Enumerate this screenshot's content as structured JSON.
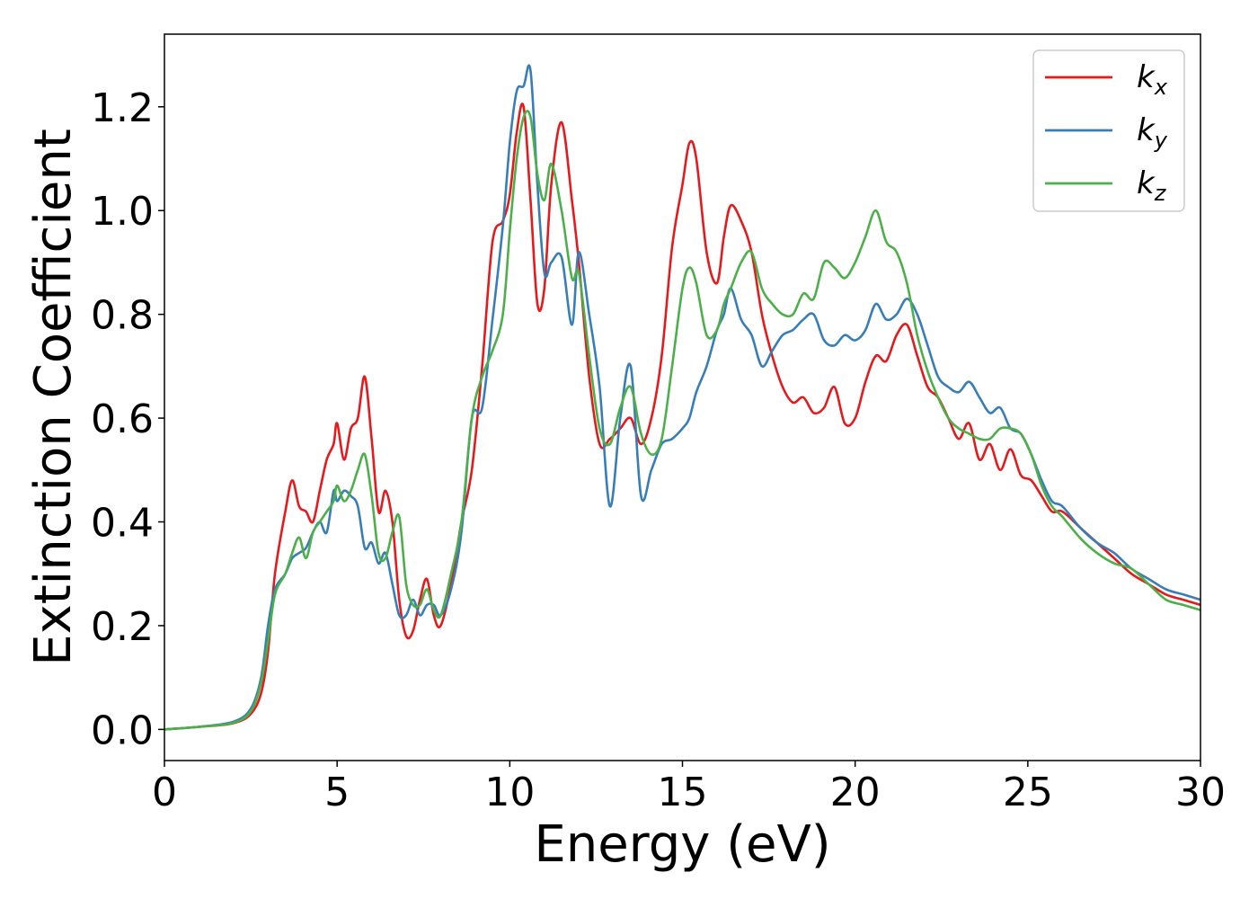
{
  "chart_data": {
    "type": "line",
    "title": "",
    "xlabel": "Energy (eV)",
    "ylabel": "Extinction Coefficient",
    "xlim": [
      0,
      30
    ],
    "ylim": [
      -0.06,
      1.34
    ],
    "xticks": [
      0,
      5,
      10,
      15,
      20,
      25,
      30
    ],
    "yticks": [
      "0.0",
      "0.2",
      "0.4",
      "0.6",
      "0.8",
      "1.0",
      "1.2"
    ],
    "ytick_values": [
      0.0,
      0.2,
      0.4,
      0.6,
      0.8,
      1.0,
      1.2
    ],
    "grid": false,
    "legend_position": "top-right",
    "series": [
      {
        "name": "k_x",
        "label_main": "k",
        "label_sub": "x",
        "color": "#e41a1c",
        "x": [
          0,
          1,
          2,
          2.5,
          2.8,
          3.0,
          3.2,
          3.5,
          3.7,
          3.9,
          4.1,
          4.3,
          4.5,
          4.7,
          4.9,
          5.0,
          5.2,
          5.4,
          5.6,
          5.8,
          6.0,
          6.2,
          6.4,
          6.6,
          6.8,
          7.0,
          7.2,
          7.4,
          7.6,
          7.8,
          8.0,
          8.3,
          8.6,
          8.9,
          9.2,
          9.5,
          9.8,
          10.0,
          10.2,
          10.4,
          10.6,
          10.8,
          11.0,
          11.2,
          11.5,
          11.8,
          12.0,
          12.3,
          12.6,
          12.9,
          13.2,
          13.5,
          13.8,
          14.1,
          14.4,
          14.7,
          15.0,
          15.2,
          15.4,
          15.7,
          16.0,
          16.2,
          16.4,
          16.7,
          17.0,
          17.3,
          17.6,
          17.9,
          18.2,
          18.5,
          18.8,
          19.1,
          19.4,
          19.7,
          20.0,
          20.3,
          20.6,
          20.9,
          21.2,
          21.5,
          21.8,
          22.1,
          22.4,
          22.7,
          23.0,
          23.3,
          23.6,
          23.9,
          24.2,
          24.5,
          24.8,
          25.1,
          25.4,
          25.7,
          26.0,
          26.5,
          27.0,
          27.5,
          28.0,
          28.5,
          29.0,
          29.5,
          30.0
        ],
        "y": [
          0.0,
          0.005,
          0.012,
          0.03,
          0.07,
          0.15,
          0.3,
          0.42,
          0.48,
          0.43,
          0.42,
          0.4,
          0.46,
          0.52,
          0.55,
          0.59,
          0.52,
          0.58,
          0.6,
          0.68,
          0.56,
          0.42,
          0.46,
          0.4,
          0.25,
          0.18,
          0.19,
          0.25,
          0.29,
          0.22,
          0.2,
          0.28,
          0.4,
          0.5,
          0.7,
          0.94,
          0.98,
          1.03,
          1.15,
          1.2,
          1.02,
          0.82,
          0.85,
          1.05,
          1.17,
          1.02,
          0.9,
          0.68,
          0.55,
          0.56,
          0.58,
          0.6,
          0.55,
          0.6,
          0.72,
          0.93,
          1.05,
          1.13,
          1.1,
          0.92,
          0.86,
          0.95,
          1.01,
          0.98,
          0.92,
          0.8,
          0.72,
          0.66,
          0.63,
          0.64,
          0.61,
          0.62,
          0.66,
          0.59,
          0.6,
          0.67,
          0.72,
          0.71,
          0.76,
          0.78,
          0.72,
          0.66,
          0.64,
          0.6,
          0.56,
          0.59,
          0.52,
          0.55,
          0.5,
          0.54,
          0.49,
          0.48,
          0.45,
          0.42,
          0.42,
          0.39,
          0.36,
          0.33,
          0.3,
          0.28,
          0.26,
          0.25,
          0.24
        ]
      },
      {
        "name": "k_y",
        "label_main": "k",
        "label_sub": "y",
        "color": "#377eb8",
        "x": [
          0,
          1,
          2,
          2.5,
          2.8,
          3.0,
          3.2,
          3.5,
          3.7,
          3.9,
          4.1,
          4.3,
          4.5,
          4.7,
          4.9,
          5.0,
          5.2,
          5.4,
          5.6,
          5.8,
          6.0,
          6.2,
          6.4,
          6.6,
          6.8,
          7.0,
          7.2,
          7.4,
          7.6,
          7.8,
          8.0,
          8.3,
          8.6,
          8.9,
          9.2,
          9.5,
          9.8,
          10.0,
          10.2,
          10.4,
          10.6,
          10.8,
          11.0,
          11.2,
          11.5,
          11.8,
          12.0,
          12.3,
          12.6,
          12.9,
          13.2,
          13.5,
          13.8,
          14.1,
          14.4,
          14.7,
          15.0,
          15.2,
          15.4,
          15.7,
          16.0,
          16.2,
          16.4,
          16.7,
          17.0,
          17.3,
          17.6,
          17.9,
          18.2,
          18.5,
          18.8,
          19.1,
          19.4,
          19.7,
          20.0,
          20.3,
          20.6,
          20.9,
          21.2,
          21.5,
          21.8,
          22.1,
          22.4,
          22.7,
          23.0,
          23.3,
          23.6,
          23.9,
          24.2,
          24.5,
          24.8,
          25.1,
          25.4,
          25.7,
          26.0,
          26.5,
          27.0,
          27.5,
          28.0,
          28.5,
          29.0,
          29.5,
          30.0
        ],
        "y": [
          0.0,
          0.005,
          0.015,
          0.04,
          0.1,
          0.2,
          0.27,
          0.3,
          0.33,
          0.34,
          0.35,
          0.38,
          0.4,
          0.38,
          0.46,
          0.44,
          0.46,
          0.45,
          0.43,
          0.35,
          0.36,
          0.32,
          0.34,
          0.28,
          0.22,
          0.22,
          0.25,
          0.22,
          0.24,
          0.24,
          0.22,
          0.27,
          0.38,
          0.6,
          0.62,
          0.79,
          0.97,
          1.13,
          1.23,
          1.24,
          1.27,
          1.05,
          0.88,
          0.9,
          0.91,
          0.78,
          0.92,
          0.8,
          0.66,
          0.43,
          0.6,
          0.7,
          0.45,
          0.5,
          0.55,
          0.56,
          0.58,
          0.6,
          0.65,
          0.7,
          0.77,
          0.8,
          0.85,
          0.79,
          0.76,
          0.7,
          0.73,
          0.76,
          0.77,
          0.79,
          0.8,
          0.75,
          0.74,
          0.76,
          0.75,
          0.77,
          0.82,
          0.79,
          0.8,
          0.83,
          0.8,
          0.74,
          0.68,
          0.66,
          0.65,
          0.67,
          0.64,
          0.61,
          0.62,
          0.58,
          0.57,
          0.53,
          0.48,
          0.44,
          0.43,
          0.39,
          0.36,
          0.34,
          0.31,
          0.29,
          0.27,
          0.26,
          0.25
        ]
      },
      {
        "name": "k_z",
        "label_main": "k",
        "label_sub": "z",
        "color": "#4daf4a",
        "x": [
          0,
          1,
          2,
          2.5,
          2.8,
          3.0,
          3.2,
          3.5,
          3.7,
          3.9,
          4.1,
          4.3,
          4.5,
          4.7,
          4.9,
          5.0,
          5.2,
          5.4,
          5.6,
          5.8,
          6.0,
          6.2,
          6.4,
          6.6,
          6.8,
          7.0,
          7.2,
          7.4,
          7.6,
          7.8,
          8.0,
          8.3,
          8.6,
          8.9,
          9.2,
          9.5,
          9.8,
          10.0,
          10.2,
          10.4,
          10.6,
          10.8,
          11.0,
          11.2,
          11.5,
          11.8,
          12.0,
          12.3,
          12.6,
          12.9,
          13.2,
          13.5,
          13.8,
          14.1,
          14.4,
          14.7,
          15.0,
          15.2,
          15.4,
          15.7,
          16.0,
          16.2,
          16.4,
          16.7,
          17.0,
          17.3,
          17.6,
          17.9,
          18.2,
          18.5,
          18.8,
          19.1,
          19.4,
          19.7,
          20.0,
          20.3,
          20.6,
          20.9,
          21.2,
          21.5,
          21.8,
          22.1,
          22.4,
          22.7,
          23.0,
          23.3,
          23.6,
          23.9,
          24.2,
          24.5,
          24.8,
          25.1,
          25.4,
          25.7,
          26.0,
          26.5,
          27.0,
          27.5,
          28.0,
          28.5,
          29.0,
          29.5,
          30.0
        ],
        "y": [
          0.0,
          0.005,
          0.013,
          0.035,
          0.09,
          0.17,
          0.26,
          0.3,
          0.34,
          0.37,
          0.33,
          0.38,
          0.4,
          0.42,
          0.44,
          0.47,
          0.44,
          0.46,
          0.5,
          0.53,
          0.45,
          0.34,
          0.33,
          0.38,
          0.41,
          0.28,
          0.24,
          0.24,
          0.27,
          0.23,
          0.22,
          0.3,
          0.4,
          0.6,
          0.68,
          0.73,
          0.8,
          0.96,
          1.1,
          1.18,
          1.18,
          1.07,
          1.02,
          1.09,
          1.0,
          0.87,
          0.88,
          0.72,
          0.58,
          0.55,
          0.62,
          0.66,
          0.57,
          0.53,
          0.56,
          0.7,
          0.85,
          0.89,
          0.86,
          0.76,
          0.77,
          0.82,
          0.85,
          0.9,
          0.92,
          0.85,
          0.82,
          0.8,
          0.8,
          0.84,
          0.83,
          0.9,
          0.89,
          0.87,
          0.9,
          0.95,
          1.0,
          0.94,
          0.92,
          0.86,
          0.76,
          0.69,
          0.64,
          0.6,
          0.58,
          0.57,
          0.56,
          0.56,
          0.58,
          0.58,
          0.57,
          0.53,
          0.47,
          0.43,
          0.41,
          0.37,
          0.34,
          0.32,
          0.31,
          0.28,
          0.25,
          0.24,
          0.23
        ]
      }
    ]
  }
}
